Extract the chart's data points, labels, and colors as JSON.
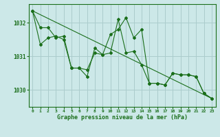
{
  "title": "Graphe pression niveau de la mer (hPa)",
  "bg_color": "#cce8e8",
  "grid_color": "#aacccc",
  "line_color": "#1a6e1a",
  "xlim": [
    -0.5,
    23.5
  ],
  "ylim": [
    1029.5,
    1032.55
  ],
  "yticks": [
    1030,
    1031,
    1032
  ],
  "xtick_labels": [
    "0",
    "1",
    "2",
    "3",
    "4",
    "5",
    "6",
    "7",
    "8",
    "9",
    "10",
    "11",
    "12",
    "13",
    "14",
    "15",
    "16",
    "17",
    "18",
    "19",
    "20",
    "21",
    "22",
    "23"
  ],
  "series1": {
    "x": [
      0,
      1,
      2,
      3,
      4,
      5,
      6,
      7,
      8,
      9,
      10,
      11,
      12,
      13,
      14,
      15,
      16,
      17,
      18,
      19,
      20,
      21,
      22,
      23
    ],
    "y": [
      1032.35,
      1031.85,
      1031.85,
      1031.55,
      1031.6,
      1030.65,
      1030.65,
      1030.6,
      1031.1,
      1031.05,
      1031.65,
      1031.8,
      1032.15,
      1031.55,
      1031.8,
      1030.2,
      1030.2,
      1030.15,
      1030.5,
      1030.45,
      1030.45,
      1030.4,
      1029.9,
      1029.75
    ]
  },
  "series2": {
    "x": [
      0,
      1,
      2,
      3,
      4,
      5,
      6,
      7,
      8,
      9,
      10,
      11,
      12,
      13,
      14,
      15,
      16,
      17,
      18,
      19,
      20,
      21,
      22,
      23
    ],
    "y": [
      1032.35,
      1031.35,
      1031.55,
      1031.6,
      1031.5,
      1030.65,
      1030.65,
      1030.4,
      1031.25,
      1031.05,
      1031.1,
      1032.1,
      1031.1,
      1031.15,
      1030.75,
      1030.2,
      1030.2,
      1030.15,
      1030.5,
      1030.45,
      1030.45,
      1030.4,
      1029.9,
      1029.75
    ]
  },
  "series3": {
    "x": [
      0,
      23
    ],
    "y": [
      1032.35,
      1029.75
    ]
  }
}
